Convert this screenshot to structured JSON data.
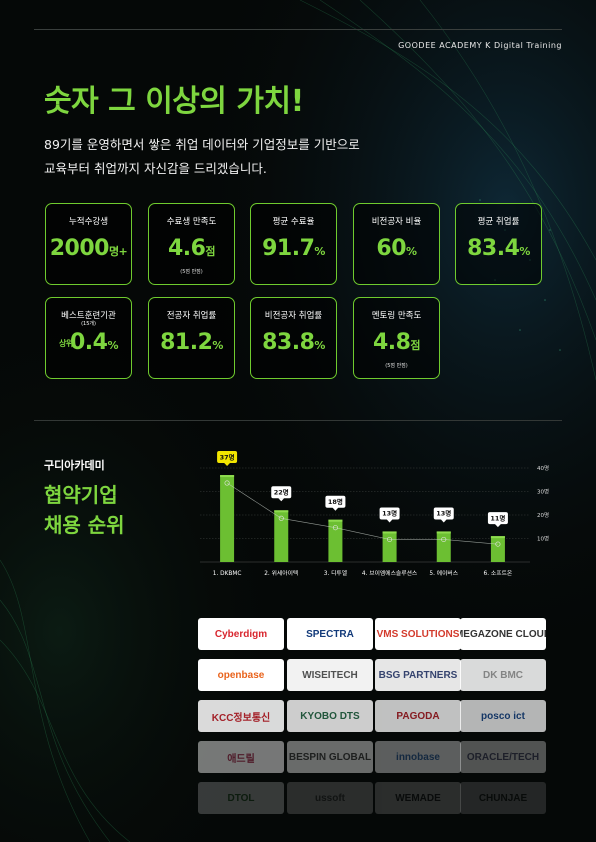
{
  "brand": "GOODEE ACADEMY K Digital Training",
  "headline": "숫자 그 이상의 가치!",
  "description": [
    "89기를 운영하면서 쌓은 취업 데이터와 기업정보를 기반으로",
    "교육부터 취업까지 자신감을 드리겠습니다."
  ],
  "stats": [
    {
      "label": "누적수강생",
      "value": "2000",
      "unit": "명+",
      "note": ""
    },
    {
      "label": "수료생 만족도",
      "value": "4.6",
      "unit": "점",
      "note": "(5점 만점)"
    },
    {
      "label": "평균 수료율",
      "value": "91.7",
      "unit": "%",
      "note": ""
    },
    {
      "label": "비전공자 비율",
      "value": "60",
      "unit": "%",
      "note": ""
    },
    {
      "label": "평균 취업률",
      "value": "83.4",
      "unit": "%",
      "note": ""
    },
    {
      "label": "베스트훈련기관",
      "label_sub": "(15개)",
      "prefix": "상위",
      "value": "0.4",
      "unit": "%",
      "note": ""
    },
    {
      "label": "전공자 취업률",
      "value": "81.2",
      "unit": "%",
      "note": ""
    },
    {
      "label": "비전공자 취업률",
      "value": "83.8",
      "unit": "%",
      "note": ""
    },
    {
      "label": "멘토링 만족도",
      "value": "4.8",
      "unit": "점",
      "note": "(5점 만점)"
    }
  ],
  "section": {
    "small": "구디아카데미",
    "title_line1": "협약기업",
    "title_line2": "채용 순위"
  },
  "chart_data": {
    "type": "bar",
    "categories": [
      "1. DKBMC",
      "2. 위세아이텍",
      "3. 디투엘",
      "4. 브이엠에스솔루션스",
      "5. 에이버스",
      "6. 소프트온"
    ],
    "values": [
      37,
      22,
      18,
      13,
      13,
      11
    ],
    "value_labels": [
      "37명",
      "22명",
      "18명",
      "13명",
      "13명",
      "11명"
    ],
    "y_ticks": [
      10,
      20,
      30,
      40
    ],
    "y_tick_labels": [
      "10명",
      "20명",
      "30명",
      "40명"
    ],
    "ylim": [
      0,
      40
    ],
    "grid": true,
    "overlay_line": true,
    "colors": {
      "bar": "#6cbf32",
      "bar_top": "#8fdc4f",
      "highlight": "#f2e500",
      "label": "#ffffff"
    }
  },
  "logos": [
    {
      "name": "Cyberdigm",
      "color": "#d8262e",
      "opacity": 1
    },
    {
      "name": "SPECTRA",
      "color": "#123a7a",
      "opacity": 1
    },
    {
      "name": "VMS SOLUTIONS",
      "color": "#d33a2c",
      "opacity": 1
    },
    {
      "name": "MEGAZONE CLOUD",
      "color": "#333333",
      "opacity": 1
    },
    {
      "name": "openbase",
      "color": "#e9631c",
      "opacity": 1
    },
    {
      "name": "WISEITECH",
      "color": "#555555",
      "opacity": 0.95
    },
    {
      "name": "BSG PARTNERS",
      "color": "#3b4a7a",
      "opacity": 0.9
    },
    {
      "name": "DK BMC",
      "color": "#9a9a9a",
      "opacity": 0.85
    },
    {
      "name": "KCC정보통신",
      "color": "#c0262f",
      "opacity": 0.85
    },
    {
      "name": "KYOBO DTS",
      "color": "#2a6a4a",
      "opacity": 0.8
    },
    {
      "name": "PAGODA",
      "color": "#b0222a",
      "opacity": 0.75
    },
    {
      "name": "posco ict",
      "color": "#1d4b8f",
      "opacity": 0.7
    },
    {
      "name": "애드릴",
      "color": "#aa3355",
      "opacity": 0.45
    },
    {
      "name": "BESPIN GLOBAL",
      "color": "#444444",
      "opacity": 0.4
    },
    {
      "name": "innobase",
      "color": "#3366aa",
      "opacity": 0.35
    },
    {
      "name": "ORACLE/TECH",
      "color": "#555577",
      "opacity": 0.3
    },
    {
      "name": "DTOL",
      "color": "#2a6a2a",
      "opacity": 0.2
    },
    {
      "name": "ussoft",
      "color": "#555555",
      "opacity": 0.15
    },
    {
      "name": "WEMADE",
      "color": "#222222",
      "opacity": 0.15
    },
    {
      "name": "CHUNJAE",
      "color": "#222222",
      "opacity": 0.12
    }
  ]
}
